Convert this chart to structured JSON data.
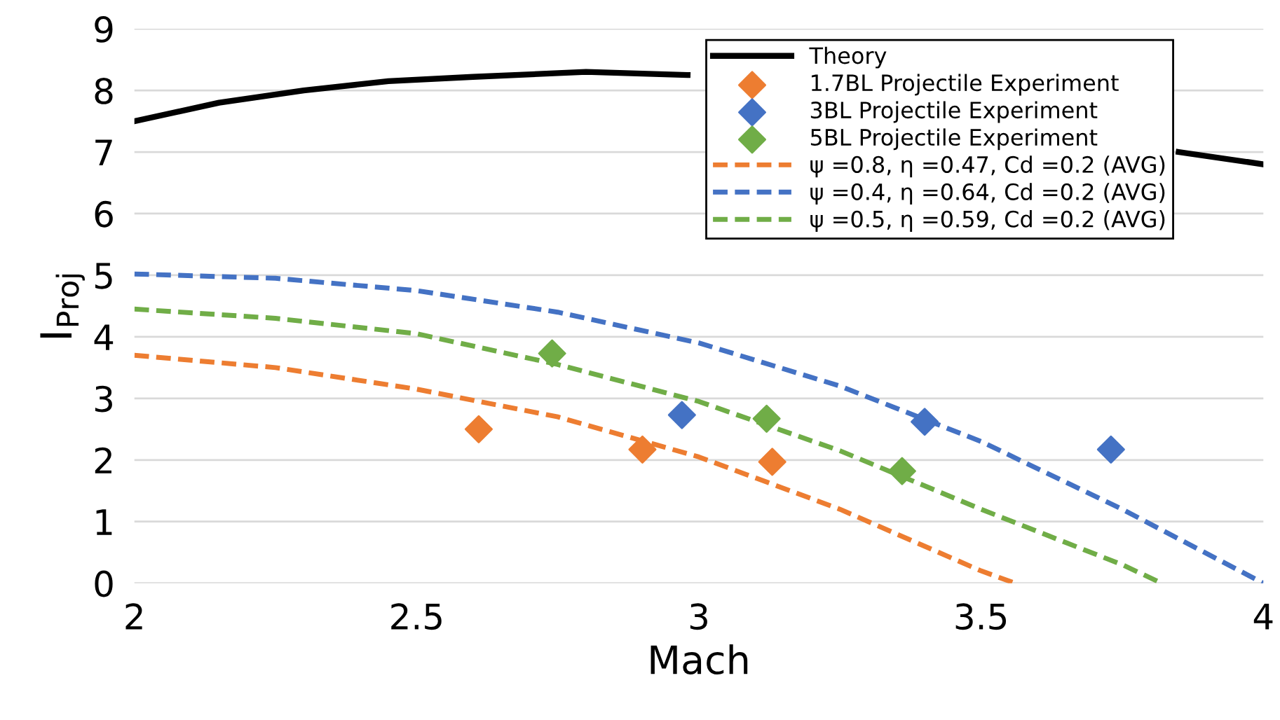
{
  "chart_data": {
    "type": "line",
    "xlabel": "Mach",
    "ylabel": "I$_{Proj}$",
    "xlim": [
      2,
      4
    ],
    "xticks": [
      2,
      2.5,
      3,
      3.5,
      4
    ],
    "ylim": [
      0,
      9
    ],
    "yticks": [
      0,
      1,
      2,
      3,
      4,
      5,
      6,
      7,
      8,
      9
    ],
    "grid": "y",
    "legend": "top right",
    "series": [
      {
        "name": "Theory",
        "color": "#000000",
        "line_style": "solid",
        "x": [
          2,
          2.15,
          2.3,
          2.45,
          2.6,
          2.8,
          2.98,
          3.4,
          3.85,
          4
        ],
        "values": [
          7.5,
          7.8,
          8.0,
          8.15,
          8.22,
          8.3,
          8.25,
          null,
          7.0,
          6.8
        ]
      },
      {
        "name": "1.7BL Projectile Experiment",
        "type": "scatter",
        "marker": "diamond",
        "color": "#ed7d31",
        "x": [
          2.61,
          2.9,
          3.13
        ],
        "values": [
          2.5,
          2.17,
          1.97
        ]
      },
      {
        "name": "3BL Projectile Experiment",
        "type": "scatter",
        "marker": "diamond",
        "color": "#4472c4",
        "x": [
          2.97,
          3.4,
          3.73
        ],
        "values": [
          2.73,
          2.62,
          2.17
        ]
      },
      {
        "name": "5BL Projectile Experiment",
        "type": "scatter",
        "marker": "diamond",
        "color": "#70ad47",
        "x": [
          2.74,
          3.12,
          3.36
        ],
        "values": [
          3.73,
          2.67,
          1.82
        ]
      },
      {
        "name": "ψ =0.8, η =0.47, Cd =0.2 (AVG)",
        "line_style": "dashed",
        "color": "#ed7d31",
        "x": [
          2,
          2.25,
          2.5,
          2.75,
          3.0,
          3.25,
          3.5,
          3.56
        ],
        "values": [
          3.7,
          3.5,
          3.15,
          2.7,
          2.05,
          1.2,
          0.2,
          0
        ]
      },
      {
        "name": "ψ =0.4, η =0.64, Cd =0.2 (AVG)",
        "line_style": "dashed",
        "color": "#4472c4",
        "x": [
          2,
          2.25,
          2.5,
          2.75,
          3.0,
          3.25,
          3.5,
          3.75,
          4
        ],
        "values": [
          5.02,
          4.95,
          4.75,
          4.4,
          3.9,
          3.2,
          2.3,
          1.2,
          0
        ]
      },
      {
        "name": "ψ =0.5, η =0.59, Cd =0.2 (AVG)",
        "line_style": "dashed",
        "color": "#70ad47",
        "x": [
          2,
          2.25,
          2.5,
          2.75,
          3.0,
          3.25,
          3.5,
          3.75,
          3.82
        ],
        "values": [
          4.45,
          4.3,
          4.05,
          3.55,
          2.95,
          2.15,
          1.2,
          0.3,
          0
        ]
      }
    ]
  }
}
